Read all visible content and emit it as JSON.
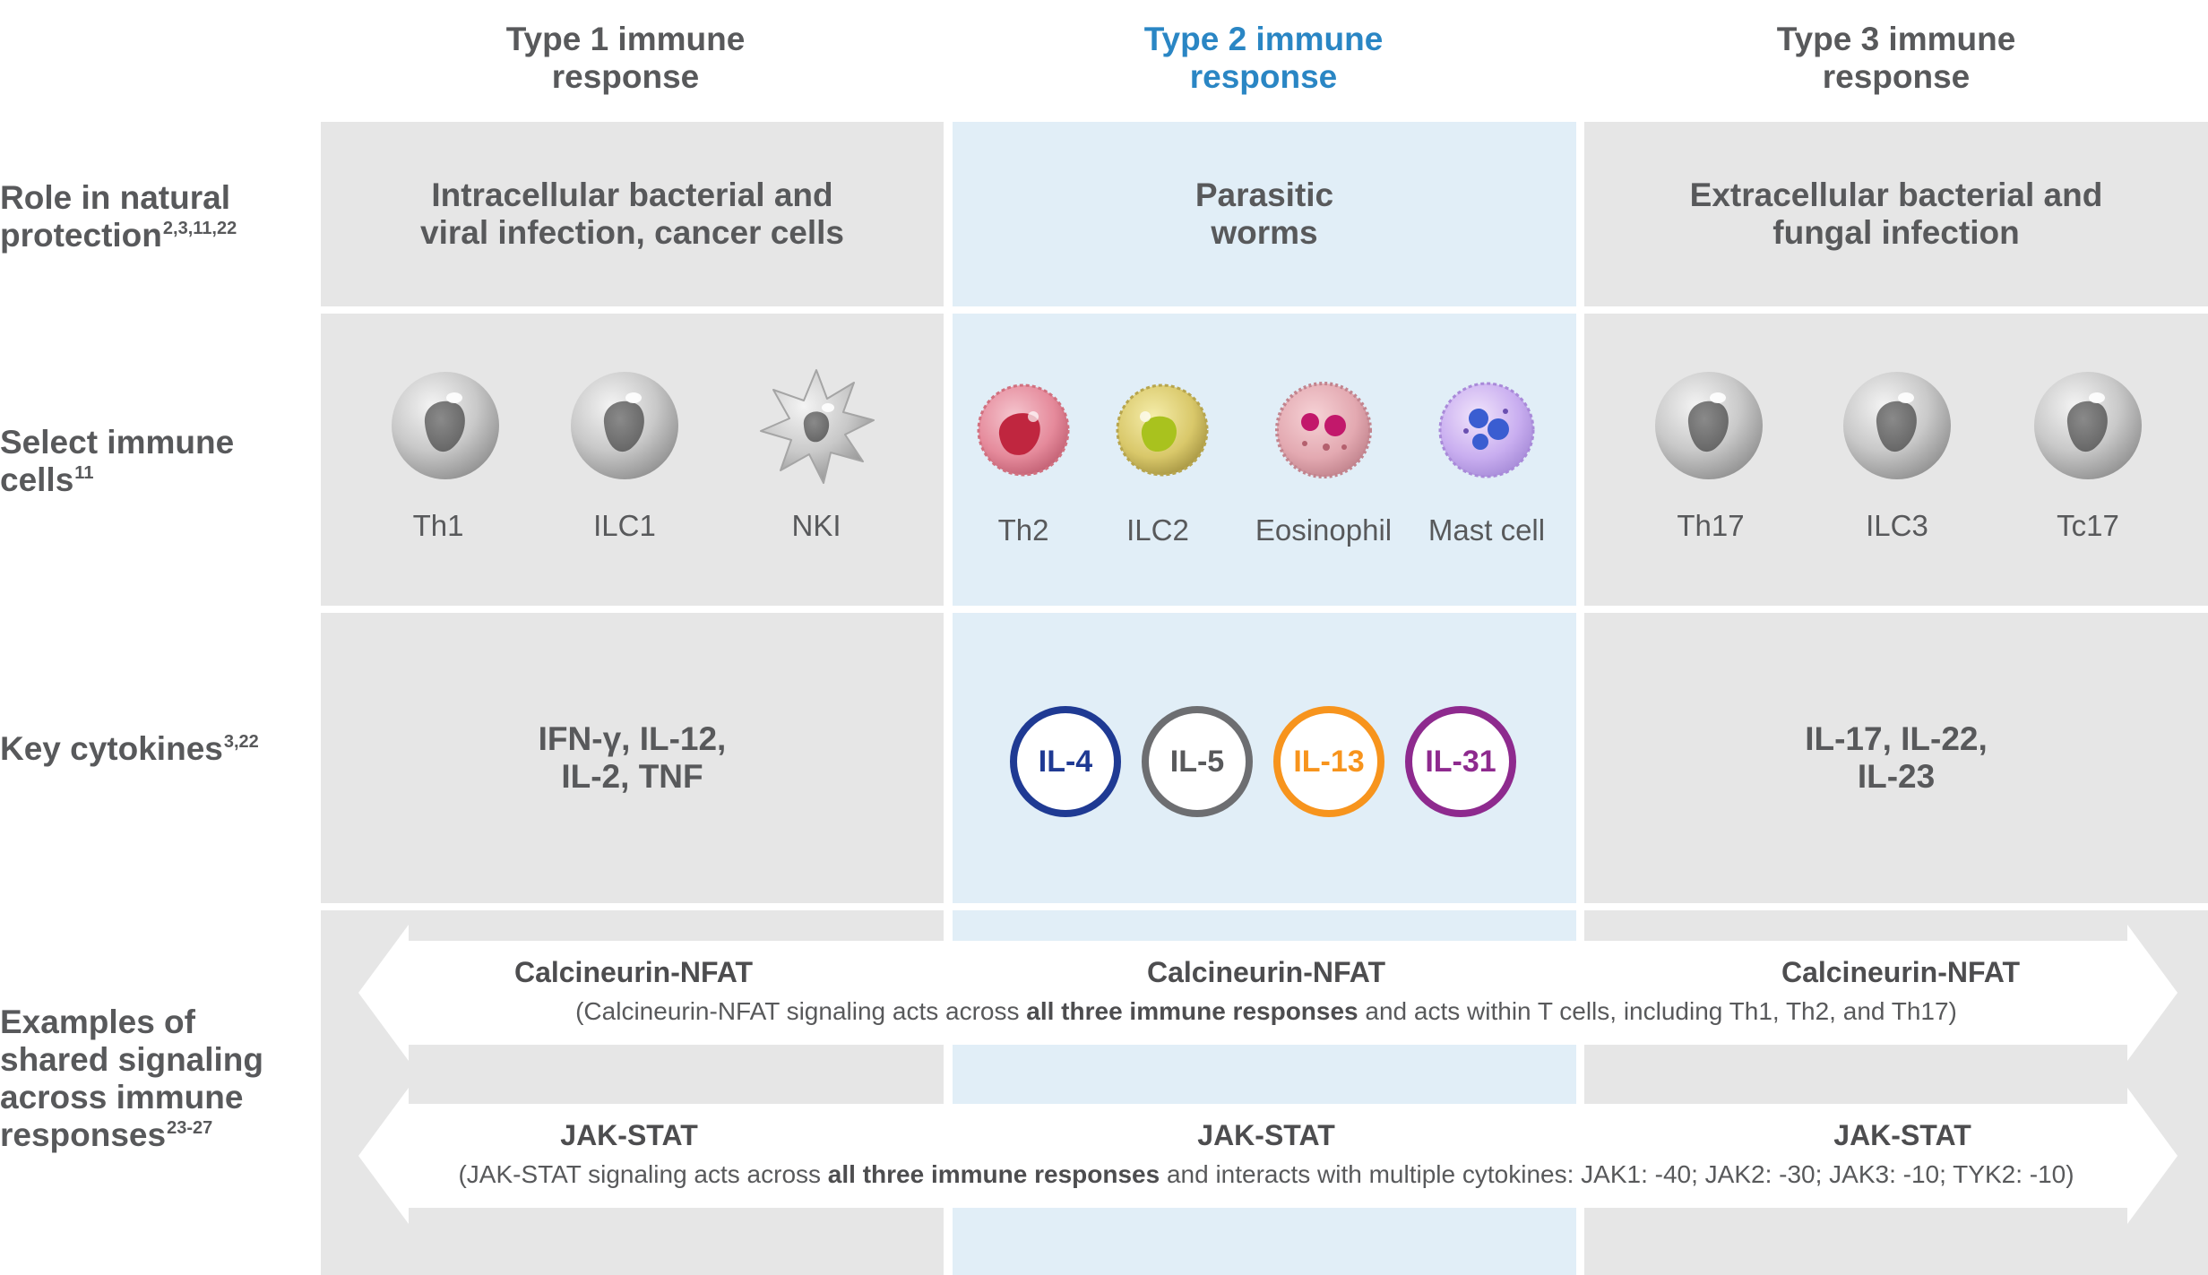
{
  "columns": {
    "type1": "Type 1 immune\nresponse",
    "type2": "Type 2 immune\nresponse",
    "type3": "Type 3 immune\nresponse"
  },
  "rows": {
    "role": {
      "label_line1": "Role in natural",
      "label_line2": "protection",
      "sup": "2,3,11,22"
    },
    "cells": {
      "label_line1": "Select immune",
      "label_line2": "cells",
      "sup": "11"
    },
    "cytokines": {
      "label": "Key cytokines",
      "sup": "3,22"
    },
    "signaling": {
      "label_line1": "Examples of",
      "label_line2": "shared signaling",
      "label_line3": "across immune",
      "label_line4": "responses",
      "sup": "23-27"
    }
  },
  "role": {
    "type1": "Intracellular bacterial and\nviral infection, cancer cells",
    "type2": "Parasitic\nworms",
    "type3": "Extracellular bacterial and\nfungal infection"
  },
  "immune_cells": {
    "type1": [
      "Th1",
      "ILC1",
      "NKI"
    ],
    "type2": [
      "Th2",
      "ILC2",
      "Eosinophil",
      "Mast cell"
    ],
    "type3": [
      "Th17",
      "ILC3",
      "Tc17"
    ]
  },
  "cytokines": {
    "type1": "IFN-γ, IL-12,\nIL-2, TNF",
    "type2": [
      {
        "label": "IL-4",
        "color": "#1f3a93"
      },
      {
        "label": "IL-5",
        "color": "#6d6e71"
      },
      {
        "label": "IL-13",
        "color": "#f7941d"
      },
      {
        "label": "IL-31",
        "color": "#8e2a8e"
      }
    ],
    "type3": "IL-17, IL-22,\nIL-23"
  },
  "signaling": {
    "calcineurin": {
      "title": "Calcineurin-NFAT",
      "desc_pre": "(Calcineurin-NFAT signaling acts across ",
      "desc_bold": "all three immune responses",
      "desc_post": " and acts within T cells, including Th1, Th2, and Th17)"
    },
    "jakstat": {
      "title": "JAK-STAT",
      "desc_pre": "(JAK-STAT signaling acts across ",
      "desc_bold": "all three immune responses",
      "desc_post": " and interacts with multiple cytokines: JAK1: -40; JAK2: -30; JAK3: -10; TYK2: -10)"
    }
  },
  "colors": {
    "grey_cell": "#e6e6e6",
    "blue_cell": "#e1eef7",
    "text": "#58595b",
    "type2_accent": "#2a86c4"
  }
}
